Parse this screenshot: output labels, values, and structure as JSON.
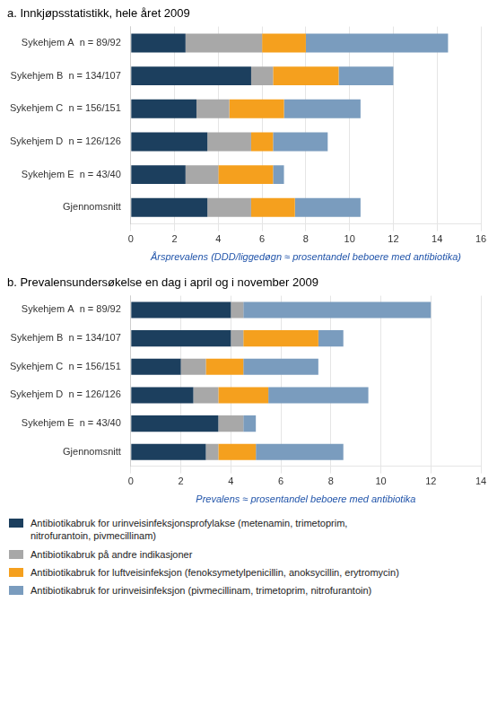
{
  "chart_data": [
    {
      "type": "bar",
      "orientation": "horizontal",
      "stacked": true,
      "title": "a. Innkjøpsstatistikk, hele året 2009",
      "xlabel": "Årsprevalens (DDD/liggedøgn ≈ prosentandel beboere med antibiotika)",
      "categories": [
        "Sykehjem A  n = 89/92",
        "Sykehjem B  n = 134/107",
        "Sykehjem C  n = 156/151",
        "Sykehjem D  n = 126/126",
        "Sykehjem E  n = 43/40",
        "Gjennomsnitt"
      ],
      "series": [
        {
          "name": "Antibiotikabruk for urinveisinfeksjonsprofylakse (metenamin, trimetoprim,\nnitrofurantoin, pivmecillinam)",
          "color": "#1c3f5e",
          "values": [
            2.5,
            5.5,
            3.0,
            3.5,
            2.5,
            3.5
          ]
        },
        {
          "name": "Antibiotikabruk på andre indikasjoner",
          "color": "#a8a8a8",
          "values": [
            3.5,
            1.0,
            1.5,
            2.0,
            1.5,
            2.0
          ]
        },
        {
          "name": "Antibiotikabruk for luftveisinfeksjon (fenoksymetylpenicillin, anoksycillin, erytromycin)",
          "color": "#f5a01e",
          "values": [
            2.0,
            3.0,
            2.5,
            1.0,
            2.5,
            2.0
          ]
        },
        {
          "name": "Antibiotikabruk for urinveisinfeksjon (pivmecillinam, trimetoprim, nitrofurantoin)",
          "color": "#7a9cbe",
          "values": [
            6.5,
            2.5,
            3.5,
            2.5,
            0.5,
            3.0
          ]
        }
      ],
      "xlim": [
        0,
        16
      ],
      "xticks": [
        0,
        2,
        4,
        6,
        8,
        10,
        12,
        14,
        16
      ],
      "grid": true
    },
    {
      "type": "bar",
      "orientation": "horizontal",
      "stacked": true,
      "title": "b. Prevalensundersøkelse en dag i april og i november 2009",
      "xlabel": "Prevalens ≈ prosentandel beboere med antibiotika",
      "categories": [
        "Sykehjem A  n = 89/92",
        "Sykehjem B  n = 134/107",
        "Sykehjem C  n = 156/151",
        "Sykehjem D  n = 126/126",
        "Sykehjem E  n = 43/40",
        "Gjennomsnitt"
      ],
      "series": [
        {
          "name": "Antibiotikabruk for urinveisinfeksjonsprofylakse (metenamin, trimetoprim,\nnitrofurantoin, pivmecillinam)",
          "color": "#1c3f5e",
          "values": [
            4.0,
            4.0,
            2.0,
            2.5,
            3.5,
            3.0
          ]
        },
        {
          "name": "Antibiotikabruk på andre indikasjoner",
          "color": "#a8a8a8",
          "values": [
            0.5,
            0.5,
            1.0,
            1.0,
            1.0,
            0.5
          ]
        },
        {
          "name": "Antibiotikabruk for luftveisinfeksjon (fenoksymetylpenicillin, anoksycillin, erytromycin)",
          "color": "#f5a01e",
          "values": [
            0.0,
            3.0,
            1.5,
            2.0,
            0.0,
            1.5
          ]
        },
        {
          "name": "Antibiotikabruk for urinveisinfeksjon (pivmecillinam, trimetoprim, nitrofurantoin)",
          "color": "#7a9cbe",
          "values": [
            7.5,
            1.0,
            3.0,
            4.0,
            0.5,
            3.5
          ]
        }
      ],
      "xlim": [
        0,
        14
      ],
      "xticks": [
        0,
        2,
        4,
        6,
        8,
        10,
        12,
        14
      ],
      "grid": true,
      "legend": "bottom"
    }
  ]
}
